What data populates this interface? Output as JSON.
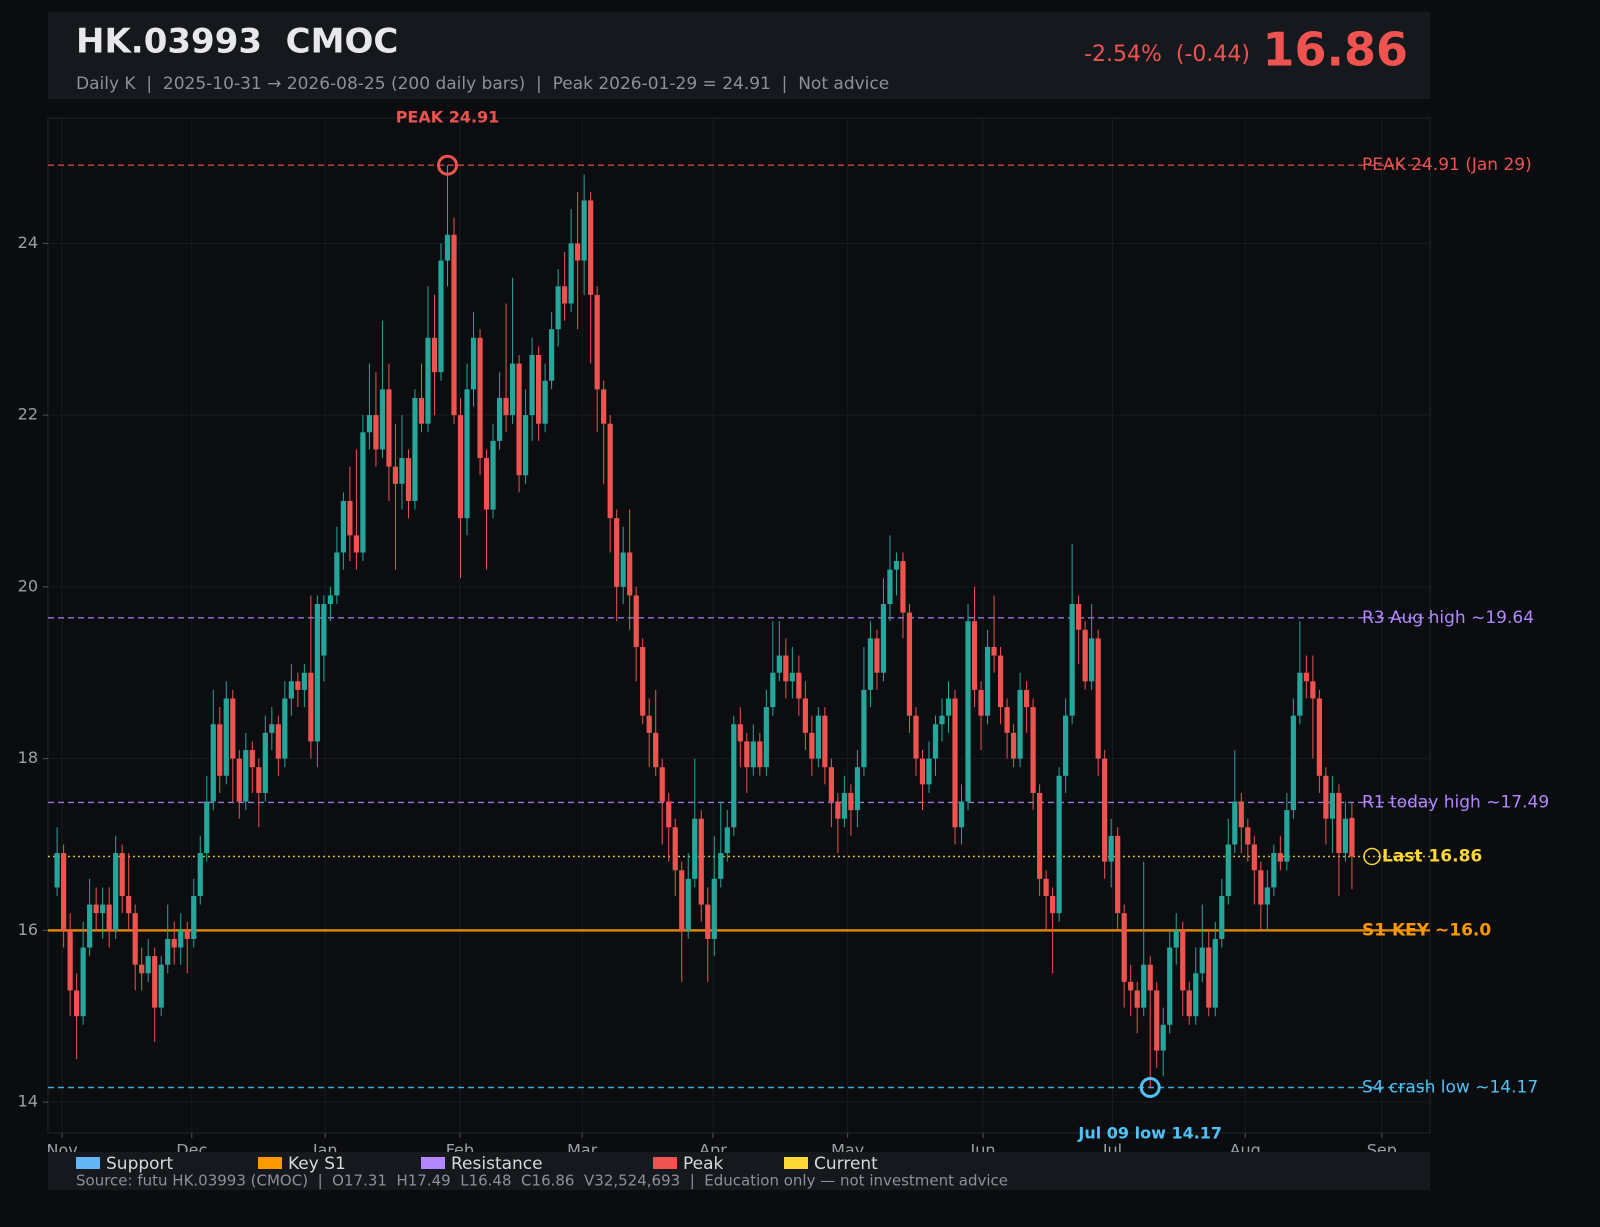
{
  "chart_data": {
    "type": "candlestick",
    "title": "HK.03993  CMOC",
    "subtitle": "Daily K  |  2025-10-31 → 2026-08-25 (200 daily bars)  |  Peak 2026-01-29 = 24.91  |  Not advice",
    "change": "-2.54%  (-0.44)",
    "price": "16.86",
    "footer": "Source: futu HK.03993 (CMOC)  |  O17.31  H17.49  L16.48  C16.86  V32,524,693  |  Education only — not investment advice",
    "up_color": "#26a69a",
    "down_color": "#ef5350",
    "grid": true,
    "ylim": [
      13.64,
      25.46
    ],
    "yticks": [
      14,
      16,
      18,
      20,
      22,
      24
    ],
    "xlim": [
      -1.4,
      211
    ],
    "xticks": [
      {
        "value": 0.77,
        "label": "Nov"
      },
      {
        "value": 20.7,
        "label": "Dec"
      },
      {
        "value": 41.2,
        "label": "Jan"
      },
      {
        "value": 61.9,
        "label": "Feb"
      },
      {
        "value": 80.7,
        "label": "Mar"
      },
      {
        "value": 100.8,
        "label": "Apr"
      },
      {
        "value": 121.5,
        "label": "May"
      },
      {
        "value": 142.3,
        "label": "Jun"
      },
      {
        "value": 162.2,
        "label": "Jul"
      },
      {
        "value": 182.6,
        "label": "Aug"
      },
      {
        "value": 203.6,
        "label": "Sep"
      }
    ],
    "open": [
      16.5,
      16.9,
      16.0,
      15.3,
      15.0,
      15.8,
      16.3,
      16.2,
      16.3,
      16.0,
      16.9,
      16.4,
      16.2,
      15.6,
      15.5,
      15.7,
      15.1,
      15.6,
      15.9,
      15.8,
      16.0,
      15.9,
      16.4,
      16.9,
      17.5,
      18.4,
      17.8,
      18.7,
      18.0,
      17.5,
      18.1,
      17.9,
      17.6,
      18.3,
      18.4,
      18.0,
      18.7,
      18.9,
      18.8,
      19.0,
      18.2,
      19.2,
      19.8,
      19.9,
      20.4,
      21.0,
      20.6,
      20.4,
      21.8,
      22.0,
      21.6,
      22.3,
      21.4,
      21.2,
      21.5,
      21.0,
      22.2,
      21.9,
      22.9,
      22.5,
      23.8,
      24.1,
      22.0,
      20.8,
      22.3,
      22.9,
      21.5,
      20.9,
      21.7,
      22.2,
      22.0,
      22.6,
      21.3,
      22.0,
      22.7,
      21.9,
      22.4,
      23.0,
      23.5,
      23.3,
      24.0,
      23.8,
      24.5,
      23.4,
      22.3,
      21.9,
      20.8,
      20.0,
      20.4,
      19.9,
      19.3,
      18.5,
      18.3,
      17.9,
      17.5,
      17.2,
      16.7,
      16.0,
      16.6,
      17.3,
      16.3,
      15.9,
      16.6,
      16.9,
      17.2,
      18.4,
      18.2,
      17.9,
      18.2,
      17.9,
      18.6,
      19.0,
      19.2,
      18.9,
      19.0,
      18.7,
      18.3,
      18.0,
      18.5,
      17.9,
      17.5,
      17.3,
      17.6,
      17.4,
      17.9,
      18.8,
      19.4,
      19.0,
      19.8,
      20.2,
      20.3,
      19.7,
      18.5,
      18.0,
      17.7,
      18.0,
      18.4,
      18.5,
      18.7,
      17.2,
      17.5,
      19.6,
      18.8,
      18.5,
      19.3,
      19.2,
      18.6,
      18.3,
      18.0,
      18.8,
      18.6,
      17.6,
      16.6,
      16.4,
      16.2,
      17.8,
      18.5,
      19.8,
      19.5,
      18.9,
      19.4,
      18.0,
      16.8,
      17.1,
      16.2,
      15.4,
      15.3,
      15.1,
      15.6,
      15.3,
      14.6,
      14.9,
      15.8,
      16.0,
      15.3,
      15.0,
      15.5,
      15.8,
      15.1,
      15.9,
      16.4,
      17.0,
      17.5,
      17.2,
      17.0,
      16.7,
      16.3,
      16.5,
      16.9,
      16.8,
      17.4,
      18.5,
      19.0,
      18.9,
      18.7,
      17.8,
      17.3,
      17.6,
      16.9,
      17.31
    ],
    "high": [
      17.2,
      17.0,
      16.2,
      15.5,
      16.1,
      16.6,
      16.5,
      16.5,
      16.5,
      17.1,
      17.0,
      16.9,
      16.3,
      15.8,
      15.9,
      15.8,
      15.7,
      16.3,
      16.1,
      16.2,
      16.1,
      16.6,
      17.1,
      17.8,
      18.8,
      18.6,
      18.9,
      18.8,
      18.1,
      18.3,
      18.2,
      18.0,
      18.5,
      18.6,
      18.5,
      18.9,
      19.1,
      19.0,
      19.1,
      19.9,
      19.9,
      19.9,
      20.0,
      20.7,
      21.1,
      21.4,
      21.6,
      22.0,
      22.6,
      22.5,
      23.1,
      22.6,
      21.9,
      22.0,
      21.6,
      22.3,
      22.6,
      23.5,
      23.4,
      24.0,
      24.91,
      24.3,
      22.2,
      22.6,
      23.2,
      23.0,
      21.6,
      21.9,
      22.5,
      23.3,
      23.6,
      22.7,
      22.3,
      22.9,
      22.8,
      22.6,
      23.2,
      23.7,
      23.9,
      24.4,
      24.6,
      24.8,
      24.6,
      23.5,
      22.4,
      22.0,
      20.9,
      20.7,
      20.9,
      20.0,
      19.4,
      18.7,
      18.8,
      18.0,
      17.6,
      17.3,
      16.8,
      16.9,
      18.0,
      17.4,
      16.5,
      17.1,
      17.5,
      17.4,
      18.5,
      18.6,
      18.3,
      18.4,
      18.3,
      18.8,
      19.6,
      19.6,
      19.4,
      19.3,
      19.2,
      18.9,
      18.5,
      18.6,
      18.6,
      18.0,
      17.6,
      17.8,
      17.7,
      18.1,
      19.3,
      19.6,
      19.5,
      20.1,
      20.6,
      20.4,
      20.4,
      19.8,
      18.6,
      18.1,
      18.2,
      18.5,
      18.7,
      18.9,
      18.8,
      17.7,
      19.8,
      20.0,
      18.9,
      19.5,
      19.9,
      19.3,
      18.7,
      18.4,
      19.0,
      18.9,
      18.7,
      17.7,
      16.7,
      16.5,
      17.9,
      18.7,
      20.5,
      19.9,
      19.6,
      19.8,
      19.5,
      18.1,
      17.3,
      17.2,
      16.3,
      15.6,
      15.4,
      16.8,
      15.7,
      15.4,
      15.1,
      16.0,
      16.2,
      16.1,
      15.4,
      15.8,
      16.3,
      16.0,
      16.1,
      16.6,
      17.3,
      18.1,
      17.6,
      17.3,
      17.1,
      16.8,
      16.7,
      17.0,
      17.1,
      17.6,
      18.7,
      19.6,
      19.2,
      19.2,
      18.8,
      17.9,
      17.8,
      17.7,
      17.5,
      17.49
    ],
    "low": [
      16.4,
      15.8,
      15.0,
      14.5,
      14.9,
      15.7,
      16.0,
      15.9,
      15.8,
      15.9,
      16.2,
      16.0,
      15.3,
      15.3,
      15.4,
      14.7,
      15.0,
      15.5,
      15.6,
      15.6,
      15.5,
      15.8,
      16.3,
      16.8,
      17.4,
      17.6,
      17.7,
      17.5,
      17.3,
      17.4,
      17.6,
      17.2,
      17.5,
      18.1,
      17.8,
      17.9,
      18.5,
      18.6,
      18.6,
      18.0,
      17.9,
      18.9,
      19.6,
      19.8,
      20.2,
      20.3,
      20.2,
      20.3,
      21.6,
      21.4,
      21.5,
      21.0,
      20.2,
      20.9,
      20.8,
      20.9,
      21.8,
      21.8,
      22.0,
      22.4,
      23.5,
      21.9,
      20.1,
      20.6,
      22.1,
      21.3,
      20.2,
      20.8,
      21.6,
      21.8,
      21.9,
      21.1,
      21.2,
      21.7,
      21.7,
      21.8,
      22.3,
      22.8,
      23.1,
      23.2,
      23.0,
      23.4,
      22.6,
      21.8,
      21.2,
      20.4,
      19.6,
      19.8,
      19.5,
      18.9,
      18.4,
      17.9,
      17.8,
      17.0,
      16.8,
      16.4,
      15.4,
      15.9,
      16.5,
      16.1,
      15.4,
      15.7,
      16.5,
      16.8,
      17.1,
      17.9,
      17.6,
      17.8,
      17.8,
      17.8,
      18.5,
      18.9,
      18.7,
      18.7,
      18.5,
      18.1,
      17.8,
      17.9,
      17.7,
      17.2,
      16.9,
      17.2,
      17.1,
      17.2,
      17.8,
      18.6,
      18.8,
      18.9,
      19.6,
      19.9,
      19.4,
      18.3,
      17.8,
      17.4,
      17.6,
      17.8,
      18.2,
      18.3,
      17.0,
      17.0,
      17.4,
      18.6,
      18.1,
      18.4,
      19.0,
      18.4,
      18.0,
      17.9,
      17.9,
      18.3,
      17.4,
      16.4,
      16.0,
      15.5,
      16.1,
      17.6,
      18.4,
      19.1,
      18.8,
      18.8,
      17.8,
      16.6,
      16.5,
      16.0,
      15.1,
      15.0,
      14.8,
      15.0,
      14.17,
      14.4,
      14.3,
      14.8,
      15.6,
      15.0,
      14.9,
      14.9,
      15.4,
      15.0,
      15.0,
      15.8,
      16.3,
      16.9,
      16.9,
      16.8,
      16.3,
      16.0,
      16.0,
      16.4,
      16.7,
      16.7,
      17.3,
      18.4,
      18.7,
      18.0,
      17.6,
      17.0,
      16.9,
      16.4,
      16.8,
      16.48
    ],
    "close": [
      16.9,
      16.0,
      15.3,
      15.0,
      15.8,
      16.3,
      16.2,
      16.3,
      16.0,
      16.9,
      16.4,
      16.2,
      15.6,
      15.5,
      15.7,
      15.1,
      15.6,
      15.9,
      15.8,
      16.0,
      15.9,
      16.4,
      16.9,
      17.5,
      18.4,
      17.8,
      18.7,
      18.0,
      17.5,
      18.1,
      17.9,
      17.6,
      18.3,
      18.4,
      18.0,
      18.7,
      18.9,
      18.8,
      19.0,
      18.2,
      19.8,
      19.8,
      19.9,
      20.4,
      21.0,
      20.6,
      20.4,
      21.8,
      22.0,
      21.6,
      22.3,
      21.4,
      21.2,
      21.5,
      21.0,
      22.2,
      21.9,
      22.9,
      22.5,
      23.8,
      24.1,
      22.0,
      20.8,
      22.3,
      22.9,
      21.5,
      20.9,
      21.7,
      22.2,
      22.0,
      22.6,
      21.3,
      22.0,
      22.7,
      21.9,
      22.4,
      23.0,
      23.5,
      23.3,
      24.0,
      23.8,
      24.5,
      23.4,
      22.3,
      21.9,
      20.8,
      20.0,
      20.4,
      19.9,
      19.3,
      18.5,
      18.3,
      17.9,
      17.5,
      17.2,
      16.7,
      16.0,
      16.6,
      17.3,
      16.3,
      15.9,
      16.6,
      16.9,
      17.2,
      18.4,
      18.2,
      17.9,
      18.2,
      17.9,
      18.6,
      19.0,
      19.2,
      18.9,
      19.0,
      18.7,
      18.3,
      18.0,
      18.5,
      17.9,
      17.5,
      17.3,
      17.6,
      17.4,
      17.9,
      18.8,
      19.4,
      19.0,
      19.8,
      20.2,
      20.3,
      19.7,
      18.5,
      18.0,
      17.7,
      18.0,
      18.4,
      18.5,
      18.7,
      17.2,
      17.5,
      19.6,
      18.8,
      18.5,
      19.3,
      19.2,
      18.6,
      18.3,
      18.0,
      18.8,
      18.6,
      17.6,
      16.6,
      16.4,
      16.2,
      17.8,
      18.5,
      19.8,
      19.5,
      18.9,
      19.4,
      18.0,
      16.8,
      17.1,
      16.2,
      15.4,
      15.3,
      15.1,
      15.6,
      15.3,
      14.6,
      14.9,
      15.8,
      16.0,
      15.3,
      15.0,
      15.5,
      15.8,
      15.1,
      15.9,
      16.4,
      17.0,
      17.5,
      17.2,
      17.0,
      16.7,
      16.3,
      16.5,
      16.9,
      16.8,
      17.4,
      18.5,
      19.0,
      18.9,
      18.7,
      17.8,
      17.3,
      17.6,
      16.9,
      17.3,
      16.86
    ],
    "levels": [
      {
        "value": 24.91,
        "label": "PEAK 24.91 (Jan 29)",
        "color": "#ef5350",
        "style": "dashed"
      },
      {
        "value": 19.64,
        "label": "R3 Aug high ~19.64",
        "color": "#b388ff",
        "style": "dashed"
      },
      {
        "value": 17.49,
        "label": "R1 today high ~17.49",
        "color": "#b388ff",
        "style": "dashed"
      },
      {
        "value": 16.86,
        "label": "Last 16.86",
        "color": "#fdd835",
        "style": "dotted"
      },
      {
        "value": 16.0,
        "label": "S1 KEY ~16.0",
        "color": "#ff9800",
        "style": "solid"
      },
      {
        "value": 14.17,
        "label": "S4 crash low ~14.17",
        "color": "#4fc3f7",
        "style": "dashed"
      }
    ],
    "annotations": [
      {
        "value": 24.91,
        "label": "PEAK 24.91",
        "color": "#ef5350",
        "position": "above"
      },
      {
        "value": 14.17,
        "label": "Jul 09 low 14.17",
        "color": "#4fc3f7",
        "position": "below"
      }
    ],
    "legend": [
      {
        "name": "Support",
        "color": "#64b5f6"
      },
      {
        "name": "Key S1",
        "color": "#ff9800"
      },
      {
        "name": "Resistance",
        "color": "#b388ff"
      },
      {
        "name": "Peak",
        "color": "#ef5350"
      },
      {
        "name": "Current",
        "color": "#fdd835"
      }
    ]
  }
}
